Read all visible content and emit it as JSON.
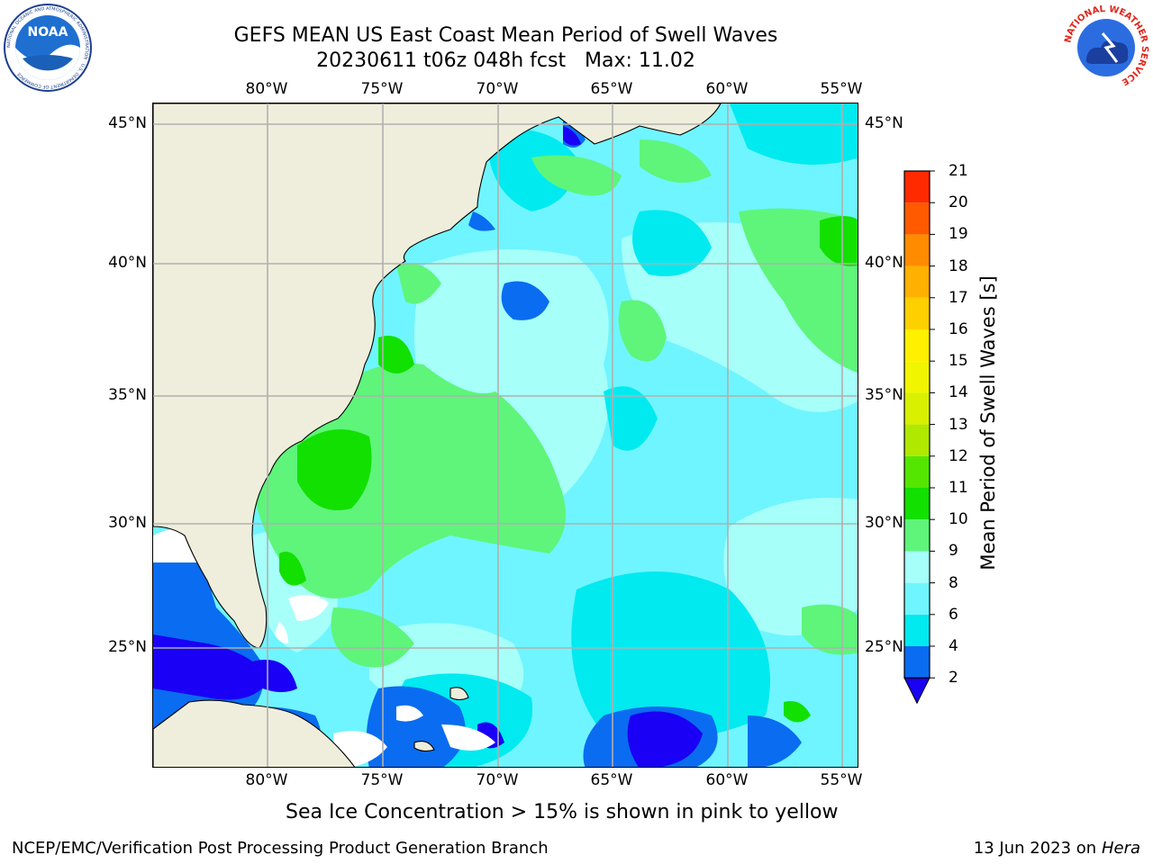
{
  "header": {
    "title_line1": "GEFS MEAN US East Coast Mean Period of Swell Waves",
    "title_line2": "20230611 t06z 048h fcst   Max: 11.02"
  },
  "logos": {
    "noaa_text": "NOAA",
    "noaa_ring": "NATIONAL OCEANIC AND ATMOSPHERIC ADMINISTRATION · U.S. DEPARTMENT OF COMMERCE",
    "nws_ring": "NATIONAL WEATHER SERVICE"
  },
  "map": {
    "lon_labels": [
      "80°W",
      "75°W",
      "70°W",
      "65°W",
      "60°W",
      "55°W"
    ],
    "lat_labels": [
      "45°N",
      "40°N",
      "35°N",
      "30°N",
      "25°N"
    ],
    "extent": {
      "lon_min": -85,
      "lon_max": -54.3,
      "lat_min": 20.5,
      "lat_max": 46
    },
    "colors": {
      "land": "#efeedc",
      "c2_4": "#0a6cf0",
      "c4_6": "#00eaf0",
      "c6_8": "#6ff5ff",
      "c8_9": "#a6fff9",
      "c9_10": "#5ef57a",
      "c10_11": "#12e000",
      "below_2": "#1a00f5",
      "grid": "#b0b0b0"
    }
  },
  "colorbar": {
    "title": "Mean Period of Swell Waves [s]",
    "levels": [
      "2",
      "4",
      "6",
      "8",
      "9",
      "10",
      "11",
      "12",
      "13",
      "14",
      "15",
      "16",
      "17",
      "18",
      "19",
      "20",
      "21"
    ],
    "colors": [
      "#0a6cf0",
      "#00eaf0",
      "#6ff5ff",
      "#a6fff9",
      "#5ef57a",
      "#12e000",
      "#55e600",
      "#b0e800",
      "#d9f000",
      "#f2f500",
      "#fff000",
      "#ffd000",
      "#ffb000",
      "#ff8c00",
      "#ff5a00",
      "#ff2a00"
    ],
    "extend_color": "#1a00f5"
  },
  "note": "Sea Ice Concentration > 15% is shown in pink to yellow",
  "footer": {
    "left": "NCEP/EMC/Verification Post Processing Product Generation Branch",
    "date": "13 Jun 2023 on",
    "machine": "Hera"
  }
}
